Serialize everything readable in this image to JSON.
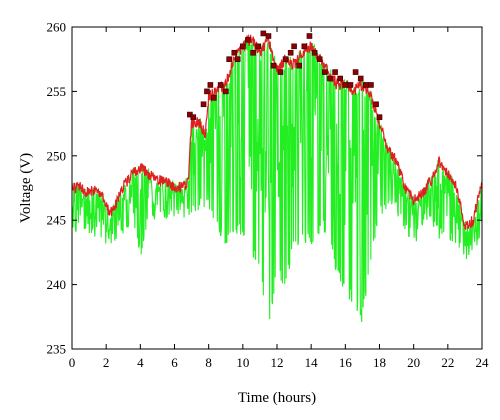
{
  "chart_data": {
    "type": "line",
    "xlabel": "Time (hours)",
    "ylabel": "Voltage (V)",
    "xlim": [
      0,
      24
    ],
    "ylim": [
      235,
      260
    ],
    "xticks": [
      0,
      2,
      4,
      6,
      8,
      10,
      12,
      14,
      16,
      18,
      20,
      22,
      24
    ],
    "yticks": [
      235,
      240,
      245,
      250,
      255,
      260
    ],
    "grid": false,
    "legend": "none",
    "colors": {
      "upper": "#e02020",
      "lower": "#22ee22",
      "marker": "#8b0000"
    },
    "series": [
      {
        "role": "upper-envelope",
        "x": [
          0,
          0.5,
          1,
          1.5,
          2,
          2.2,
          2.5,
          3,
          3.5,
          4,
          4.5,
          5,
          5.5,
          6,
          6.5,
          6.8,
          7,
          7.5,
          7.8,
          8,
          8.5,
          9,
          9.5,
          10,
          10.5,
          11,
          11.5,
          12,
          12.5,
          13,
          13.5,
          14,
          14.5,
          15,
          15.5,
          16,
          16.5,
          17,
          17.5,
          18,
          18.5,
          19,
          19.5,
          20,
          20.5,
          21,
          21.5,
          22,
          22.5,
          23,
          23.5,
          24
        ],
        "y": [
          248,
          248,
          247.5,
          248,
          246.5,
          246,
          246.5,
          248,
          249,
          249.5,
          249,
          248.5,
          248.5,
          248,
          248,
          248.5,
          253,
          253,
          252,
          255,
          255.5,
          256,
          258,
          259,
          259.5,
          258.5,
          259.5,
          257,
          258,
          257.5,
          258.5,
          259,
          258,
          257,
          256,
          256,
          255.5,
          256,
          255,
          253,
          251,
          250,
          248,
          247,
          247.5,
          248.5,
          250,
          249,
          248,
          245,
          245.5,
          248.5
        ]
      },
      {
        "role": "lower-envelope",
        "x": [
          0,
          0.5,
          1,
          1.5,
          2,
          2.5,
          3,
          3.5,
          4,
          4.5,
          5,
          5.5,
          6,
          6.5,
          7,
          7.5,
          8,
          8.5,
          9,
          9.5,
          10,
          10.5,
          11,
          11.5,
          12,
          12.5,
          13,
          13.5,
          14,
          14.5,
          15,
          15.5,
          16,
          16.5,
          17,
          17.5,
          18,
          18.5,
          19,
          19.5,
          20,
          20.5,
          21,
          21.5,
          22,
          22.5,
          23,
          23.5,
          24
        ],
        "y": [
          243.5,
          244,
          244,
          243.5,
          243,
          243,
          244,
          244.5,
          242,
          245,
          245,
          245,
          245,
          245,
          245,
          246,
          246,
          244,
          243,
          243.5,
          244,
          242,
          241,
          236,
          241,
          239.5,
          243,
          243,
          243,
          244,
          244,
          240.5,
          239.5,
          238,
          237,
          242,
          245,
          246,
          245.5,
          244,
          243,
          244,
          245,
          243.5,
          243.5,
          243,
          241.5,
          242.5,
          243
        ]
      },
      {
        "role": "peak-markers",
        "x": [
          6.9,
          7.1,
          7.7,
          7.9,
          8.1,
          8.3,
          8.7,
          9.0,
          9.2,
          9.5,
          9.7,
          10.0,
          10.3,
          10.6,
          10.9,
          11.2,
          11.5,
          11.8,
          12.2,
          12.5,
          12.8,
          13.0,
          13.3,
          13.6,
          13.9,
          14.2,
          14.5,
          14.8,
          15.1,
          15.4,
          15.7,
          16.0,
          16.3,
          16.6,
          16.9,
          17.2,
          17.5,
          17.8,
          18.0
        ],
        "y": [
          253.2,
          253,
          254,
          255,
          255.5,
          254.5,
          255.5,
          255,
          257.5,
          258,
          257.5,
          258.5,
          259,
          258,
          258.5,
          259.5,
          259.3,
          257,
          256.5,
          257.5,
          258,
          258.5,
          257,
          258.5,
          259.3,
          258,
          257.5,
          256.5,
          256,
          256.5,
          256,
          255.5,
          255.5,
          256.5,
          256,
          255.5,
          255.5,
          254,
          253
        ]
      }
    ]
  }
}
